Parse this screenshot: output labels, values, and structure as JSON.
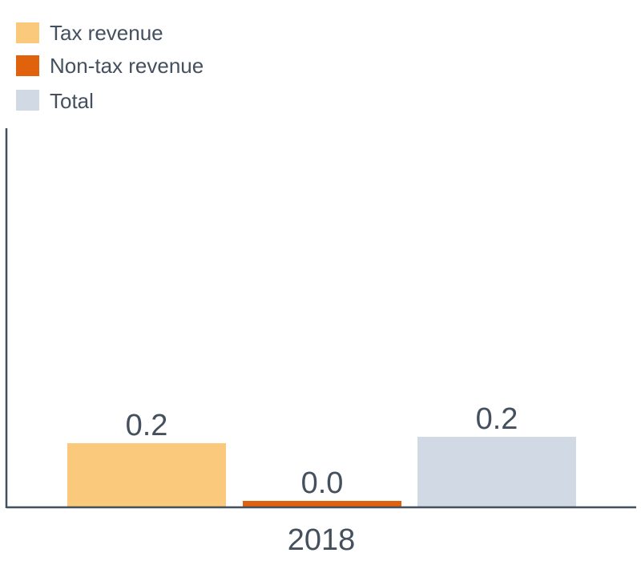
{
  "chart_data": {
    "type": "bar",
    "categories": [
      "2018"
    ],
    "series": [
      {
        "name": "Tax revenue",
        "values": [
          0.2
        ],
        "value_labels": [
          "0.2"
        ],
        "color": "#fac97c"
      },
      {
        "name": "Non-tax revenue",
        "values": [
          0.02
        ],
        "value_labels": [
          "0.0"
        ],
        "color": "#e0620d"
      },
      {
        "name": "Total",
        "values": [
          0.22
        ],
        "value_labels": [
          "0.2"
        ],
        "color": "#d0d9e4"
      }
    ],
    "ylim": [
      0,
      1.2
    ],
    "grid": false,
    "legend_position": "top-left",
    "axis_color": "#44505e",
    "text_color": "#44505e"
  }
}
